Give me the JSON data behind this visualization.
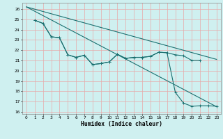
{
  "bg_color": "#cff0f0",
  "grid_color": "#e8a8a8",
  "line_color": "#1a7070",
  "xlabel": "Humidex (Indice chaleur)",
  "xlim": [
    -0.5,
    23.5
  ],
  "ylim": [
    15.8,
    26.6
  ],
  "yticks": [
    16,
    17,
    18,
    19,
    20,
    21,
    22,
    23,
    24,
    25,
    26
  ],
  "xticks": [
    0,
    1,
    2,
    3,
    4,
    5,
    6,
    7,
    8,
    9,
    10,
    11,
    12,
    13,
    14,
    15,
    16,
    17,
    18,
    19,
    20,
    21,
    22,
    23
  ],
  "line1_x": [
    0,
    23
  ],
  "line1_y": [
    26.2,
    16.5
  ],
  "line2_x": [
    0,
    23
  ],
  "line2_y": [
    26.2,
    21.1
  ],
  "line3_x": [
    1,
    2,
    3,
    4,
    5,
    6,
    7,
    8,
    9,
    10,
    11,
    12,
    13,
    14,
    15,
    16,
    17,
    18,
    19,
    20,
    21
  ],
  "line3_y": [
    24.9,
    24.6,
    23.3,
    23.2,
    21.55,
    21.3,
    21.5,
    20.6,
    20.7,
    20.85,
    21.6,
    21.2,
    21.3,
    21.3,
    21.4,
    21.8,
    21.75,
    21.55,
    21.45,
    21.0,
    21.0
  ],
  "line4_x": [
    1,
    2,
    3,
    4,
    5,
    6,
    7,
    8,
    9,
    10,
    11,
    12,
    13,
    14,
    15,
    16,
    17,
    18,
    19,
    20,
    21,
    22,
    23
  ],
  "line4_y": [
    24.9,
    24.6,
    23.3,
    23.2,
    21.55,
    21.3,
    21.5,
    20.6,
    20.7,
    20.85,
    21.6,
    21.2,
    21.3,
    21.3,
    21.4,
    21.8,
    21.75,
    17.9,
    16.85,
    16.55,
    16.6,
    16.6,
    16.55
  ]
}
